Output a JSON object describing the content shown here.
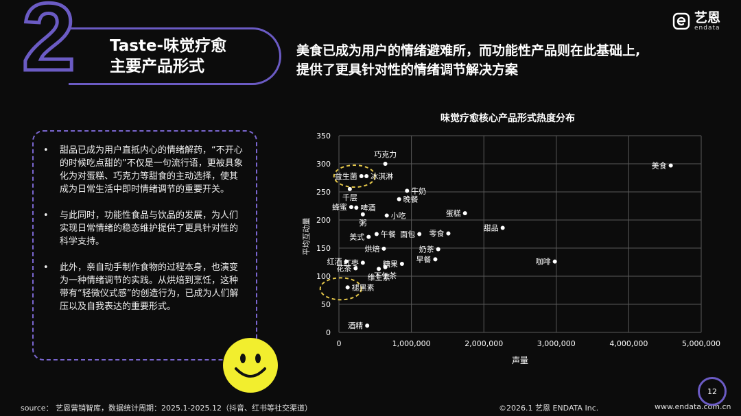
{
  "section": {
    "number": "2",
    "title_line1": "Taste-味觉疗愈",
    "title_line2": "主要产品形式"
  },
  "headline": {
    "line1": "美食已成为用户的情绪避难所，而功能性产品则在此基础上,",
    "line2": "提供了更具针对性的情绪调节解决方案"
  },
  "logo": {
    "cn": "艺恩",
    "en": "endata",
    "icon": "endata-e-icon"
  },
  "bullets": [
    "甜品已成为用户直抵内心的情绪解药，“不开心的时候吃点甜的”不仅是一句流行语，更被具象化为对蛋糕、巧克力等甜食的主动选择，使其成为日常生活中即时情绪调节的重要开关。",
    "与此同时，功能性食品与饮品的发展，为人们实现日常情绪的稳态维护提供了更具针对性的科学支持。",
    "此外，亲自动手制作食物的过程本身，也演变为一种情绪调节的实践。从烘焙到烹饪，这种带有“轻微仪式感”的创造行为，已成为人们解压以及自我表达的重要形式。"
  ],
  "bullet_marker": "•",
  "chart_data": {
    "type": "scatter",
    "title": "味觉疗愈核心产品形式热度分布",
    "xlabel": "声量",
    "ylabel": "平均互动量",
    "xlim": [
      0,
      5000000
    ],
    "ylim": [
      0,
      350
    ],
    "xticks": [
      0,
      1000000,
      2000000,
      3000000,
      4000000,
      5000000
    ],
    "xtick_labels": [
      "0",
      "1,000,000",
      "2,000,000",
      "3,000,000",
      "4,000,000",
      "5,000,000"
    ],
    "yticks": [
      0,
      50,
      100,
      150,
      200,
      250,
      300,
      350
    ],
    "grid": true,
    "points": [
      {
        "label": "巧克力",
        "x": 640000,
        "y": 300,
        "lpos": "above"
      },
      {
        "label": "美食",
        "x": 4580000,
        "y": 297,
        "lpos": "left"
      },
      {
        "label": "益生菌",
        "x": 310000,
        "y": 278,
        "lpos": "left"
      },
      {
        "label": "冰淇淋",
        "x": 380000,
        "y": 278,
        "lpos": "right"
      },
      {
        "label": "牛奶",
        "x": 940000,
        "y": 252,
        "lpos": "right"
      },
      {
        "label": "千层",
        "x": 150000,
        "y": 255,
        "lpos": "below"
      },
      {
        "label": "晚餐",
        "x": 830000,
        "y": 237,
        "lpos": "right"
      },
      {
        "label": "啤酒",
        "x": 240000,
        "y": 222,
        "lpos": "right"
      },
      {
        "label": "蜂蜜",
        "x": 170000,
        "y": 223,
        "lpos": "left"
      },
      {
        "label": "蛋糕",
        "x": 1740000,
        "y": 212,
        "lpos": "left"
      },
      {
        "label": "小吃",
        "x": 660000,
        "y": 208,
        "lpos": "right"
      },
      {
        "label": "粥",
        "x": 330000,
        "y": 210,
        "lpos": "below"
      },
      {
        "label": "甜品",
        "x": 2260000,
        "y": 186,
        "lpos": "left"
      },
      {
        "label": "面包",
        "x": 1110000,
        "y": 175,
        "lpos": "left"
      },
      {
        "label": "零食",
        "x": 1510000,
        "y": 176,
        "lpos": "left"
      },
      {
        "label": "午餐",
        "x": 520000,
        "y": 175,
        "lpos": "right"
      },
      {
        "label": "美式",
        "x": 410000,
        "y": 170,
        "lpos": "left"
      },
      {
        "label": "烘焙",
        "x": 620000,
        "y": 149,
        "lpos": "left"
      },
      {
        "label": "奶茶",
        "x": 1370000,
        "y": 148,
        "lpos": "left"
      },
      {
        "label": "早餐",
        "x": 1330000,
        "y": 130,
        "lpos": "left"
      },
      {
        "label": "咖啡",
        "x": 2980000,
        "y": 126,
        "lpos": "left"
      },
      {
        "label": "糖果",
        "x": 870000,
        "y": 122,
        "lpos": "left"
      },
      {
        "label": "红酒",
        "x": 100000,
        "y": 126,
        "lpos": "left"
      },
      {
        "label": "红枣",
        "x": 330000,
        "y": 124,
        "lpos": "left"
      },
      {
        "label": "花茶",
        "x": 230000,
        "y": 114,
        "lpos": "left"
      },
      {
        "label": "维生素",
        "x": 550000,
        "y": 113,
        "lpos": "below"
      },
      {
        "label": "下午茶",
        "x": 640000,
        "y": 116,
        "lpos": "below"
      },
      {
        "label": "褪黑素",
        "x": 120000,
        "y": 80,
        "lpos": "right"
      },
      {
        "label": "酒精",
        "x": 390000,
        "y": 12,
        "lpos": "left"
      }
    ],
    "highlighted": [
      "益生菌",
      "褪黑素"
    ],
    "colors": {
      "background": "#0c0c0c",
      "grid": "#5a5a5a",
      "point": "#ffffff",
      "highlight": "#e6c84a"
    }
  },
  "footer": {
    "source": "source： 艺恩营销智库，数据统计周期：2025.1-2025.12（抖音、红书等社交渠道）",
    "copyright": "©2026.1  艺恩 ENDATA Inc.",
    "url": "www.endata.com.cn",
    "page": "12"
  },
  "accent_color": "#6b5bc4"
}
